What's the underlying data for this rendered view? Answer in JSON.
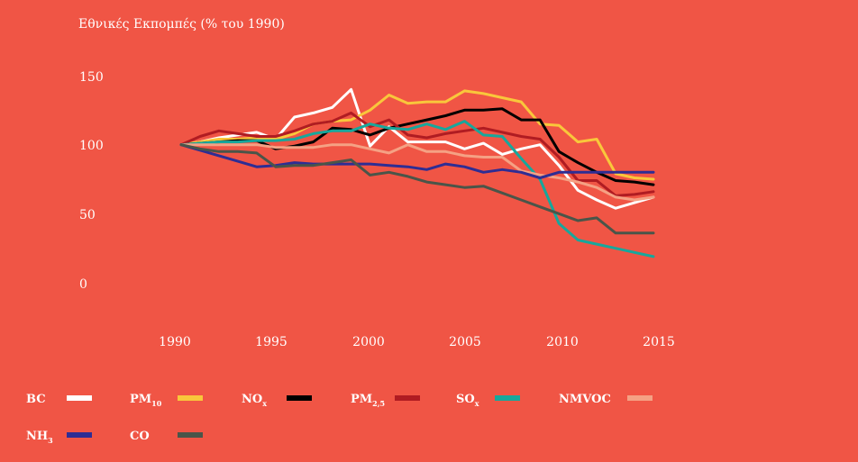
{
  "chart_data": {
    "type": "line",
    "title": "Εθνικές Εκπομπές (% του 1990)",
    "xlabel": "",
    "ylabel": "",
    "xlim": [
      1990,
      2015
    ],
    "ylim": [
      0,
      150
    ],
    "x_ticks": [
      "1990",
      "1995",
      "2000",
      "2005",
      "2010",
      "2015"
    ],
    "y_ticks": [
      "150",
      "100",
      "50",
      "0"
    ],
    "grid": false,
    "legend_position": "bottom",
    "x": [
      1990,
      1991,
      1992,
      1993,
      1994,
      1995,
      1996,
      1997,
      1998,
      1999,
      2000,
      2001,
      2002,
      2003,
      2004,
      2005,
      2006,
      2007,
      2008,
      2009,
      2010,
      2011,
      2012,
      2013,
      2014,
      2015
    ],
    "series": [
      {
        "name": "BC",
        "base": "BC",
        "sub": "",
        "color": "#ffffff",
        "values": [
          100,
          102,
          105,
          107,
          109,
          104,
          120,
          123,
          127,
          140,
          99,
          113,
          102,
          102,
          102,
          97,
          101,
          93,
          97,
          100,
          85,
          67,
          60,
          54,
          58,
          62
        ]
      },
      {
        "name": "PM10",
        "base": "PM",
        "sub": "10",
        "color": "#f9c73b",
        "values": [
          100,
          102,
          104,
          104,
          105,
          104,
          108,
          115,
          117,
          118,
          125,
          136,
          130,
          131,
          131,
          139,
          137,
          134,
          131,
          115,
          114,
          102,
          104,
          79,
          76,
          75
        ]
      },
      {
        "name": "NOx",
        "base": "NO",
        "sub": "x",
        "color": "#000000",
        "values": [
          100,
          101,
          102,
          103,
          103,
          97,
          99,
          102,
          112,
          111,
          107,
          112,
          115,
          118,
          121,
          125,
          125,
          126,
          118,
          118,
          95,
          87,
          80,
          74,
          73,
          71
        ]
      },
      {
        "name": "PM2,5",
        "base": "PM",
        "sub": "2,5",
        "color": "#b01c22",
        "values": [
          100,
          106,
          110,
          108,
          106,
          106,
          110,
          115,
          117,
          123,
          113,
          118,
          107,
          105,
          108,
          110,
          112,
          109,
          106,
          104,
          91,
          74,
          74,
          63,
          64,
          66
        ]
      },
      {
        "name": "SOx",
        "base": "SO",
        "sub": "x",
        "color": "#17a79c",
        "values": [
          100,
          101,
          102,
          102,
          103,
          103,
          104,
          108,
          110,
          110,
          115,
          112,
          111,
          115,
          111,
          117,
          107,
          106,
          90,
          75,
          43,
          31,
          28,
          25,
          22,
          19
        ]
      },
      {
        "name": "NMVOC",
        "base": "NMVOC",
        "sub": "",
        "color": "#f5a184",
        "values": [
          100,
          100,
          100,
          100,
          100,
          98,
          98,
          98,
          100,
          100,
          97,
          94,
          100,
          95,
          95,
          92,
          91,
          91,
          81,
          78,
          76,
          73,
          69,
          62,
          60,
          62
        ]
      },
      {
        "name": "NH3",
        "base": "NH",
        "sub": "3",
        "color": "#2e2d94",
        "values": [
          100,
          96,
          92,
          88,
          84,
          85,
          87,
          86,
          86,
          86,
          86,
          85,
          84,
          82,
          86,
          84,
          80,
          82,
          80,
          76,
          80,
          80,
          80,
          80,
          80,
          80
        ]
      },
      {
        "name": "CO",
        "base": "CO",
        "sub": "",
        "color": "#4a5549",
        "values": [
          100,
          97,
          95,
          95,
          94,
          84,
          85,
          85,
          87,
          89,
          78,
          80,
          77,
          73,
          71,
          69,
          70,
          65,
          60,
          55,
          50,
          45,
          47,
          36,
          36,
          36
        ]
      }
    ]
  }
}
